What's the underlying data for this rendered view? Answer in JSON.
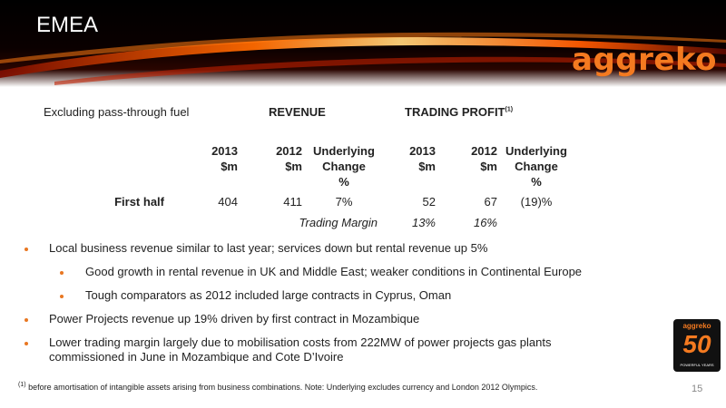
{
  "header": {
    "title": "EMEA",
    "logo": "aggreko"
  },
  "table": {
    "scope_label": "Excluding pass-through fuel",
    "revenue_label": "REVENUE",
    "profit_label": "TRADING PROFIT",
    "profit_note_ref": "(1)",
    "col_2013": [
      "2013",
      "$m"
    ],
    "col_2012": [
      "2012",
      "$m"
    ],
    "col_change": [
      "Underlying",
      "Change",
      "%"
    ],
    "row_label": "First half",
    "revenue_2013": "404",
    "revenue_2012": "411",
    "revenue_change": "7%",
    "profit_2013": "52",
    "profit_2012": "67",
    "profit_change": "(19)%",
    "margin_label": "Trading Margin",
    "margin_2013": "13%",
    "margin_2012": "16%"
  },
  "bullets": [
    "Local business revenue similar to last year; services down but rental revenue up 5%",
    "Good growth in rental revenue in UK and Middle East; weaker conditions in Continental Europe",
    "Tough comparators as 2012 included large contracts in Cyprus, Oman",
    "Power Projects revenue up 19% driven by first contract in Mozambique",
    "Lower trading margin largely due to mobilisation costs from 222MW of power projects gas plants",
    "commissioned in June in Mozambique and Cote D’Ivoire"
  ],
  "footnote": {
    "ref": "(1)",
    "text": " before amortisation of intangible assets arising from business combinations. Note: Underlying excludes currency and London 2012 Olympics."
  },
  "page_number": "15",
  "badge": {
    "brand": "aggreko",
    "number": "50",
    "tagline": "POWERFUL YEARS"
  },
  "colors": {
    "accent": "#f47a20",
    "bullet": "#e87722",
    "header_bg": "#000000"
  }
}
